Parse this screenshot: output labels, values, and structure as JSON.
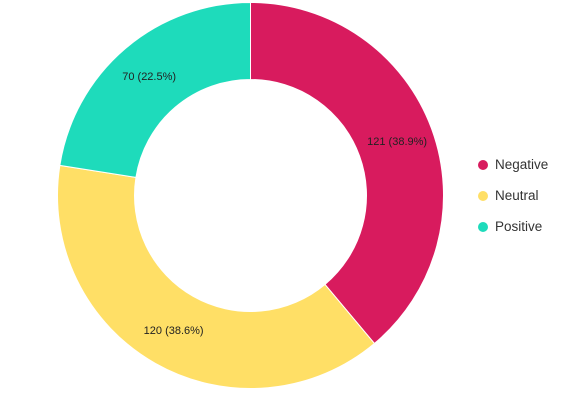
{
  "chart_data": {
    "type": "pie",
    "variant": "donut",
    "title": "",
    "categories": [
      "Negative",
      "Neutral",
      "Positive"
    ],
    "values": [
      121,
      120,
      70
    ],
    "percentages": [
      38.9,
      38.6,
      22.5
    ],
    "data_labels": [
      "121 (38.9%)",
      "120 (38.6%)",
      "70 (22.5%)"
    ],
    "colors": [
      "#d81b5e",
      "#ffdf66",
      "#1edbbb"
    ],
    "legend": {
      "position": "right",
      "items": [
        "Negative",
        "Neutral",
        "Positive"
      ]
    }
  }
}
